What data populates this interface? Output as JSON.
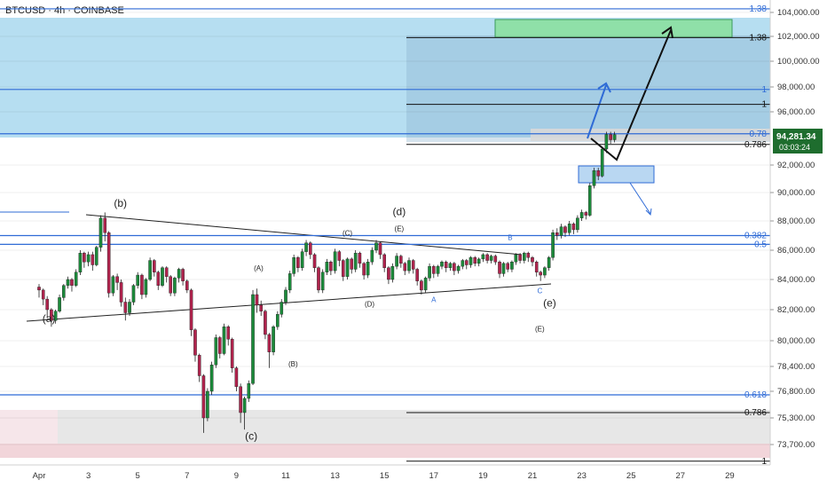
{
  "header": {
    "symbol_line": "BTCUSD · 4h · COINBASE"
  },
  "price_tag": {
    "price": "94,281.34",
    "countdown": "03:03:24"
  },
  "colors": {
    "bull": "#1b8a3a",
    "bear": "#b0234d",
    "fib_blue": "#2f6bd6",
    "target_zone": "#8fe0a8",
    "support_zone": "#e7e7e7",
    "pink_zone": "#f2d5da",
    "upper_bg": "#a9d8ee",
    "price_tag_bg": "#1e6d2e"
  },
  "chart_data": {
    "type": "candlestick",
    "symbol": "BTCUSD",
    "timeframe": "4h",
    "exchange": "COINBASE",
    "ylim": [
      72500,
      105500
    ],
    "y_ticks": [
      {
        "value": 104000,
        "label": "104,000.00"
      },
      {
        "value": 102000,
        "label": "102,000.00"
      },
      {
        "value": 100000,
        "label": "100,000.00"
      },
      {
        "value": 98000,
        "label": "98,000.00"
      },
      {
        "value": 96000,
        "label": "96,000.00"
      },
      {
        "value": 92000,
        "label": "92,000.00"
      },
      {
        "value": 90000,
        "label": "90,000.00"
      },
      {
        "value": 88000,
        "label": "88,000.00"
      },
      {
        "value": 86000,
        "label": "86,000.00"
      },
      {
        "value": 84000,
        "label": "84,000.00"
      },
      {
        "value": 82000,
        "label": "82,000.00"
      },
      {
        "value": 80000,
        "label": "80,000.00"
      },
      {
        "value": 78400,
        "label": "78,400.00"
      },
      {
        "value": 76800,
        "label": "76,800.00"
      },
      {
        "value": 75300,
        "label": "75,300.00"
      },
      {
        "value": 73700,
        "label": "73,700.00"
      }
    ],
    "x_ticks": [
      {
        "day": 1,
        "label": "Apr"
      },
      {
        "day": 3,
        "label": "3"
      },
      {
        "day": 5,
        "label": "5"
      },
      {
        "day": 7,
        "label": "7"
      },
      {
        "day": 9,
        "label": "9"
      },
      {
        "day": 11,
        "label": "11"
      },
      {
        "day": 13,
        "label": "13"
      },
      {
        "day": 15,
        "label": "15"
      },
      {
        "day": 17,
        "label": "17"
      },
      {
        "day": 19,
        "label": "19"
      },
      {
        "day": 21,
        "label": "21"
      },
      {
        "day": 23,
        "label": "23"
      },
      {
        "day": 25,
        "label": "25"
      },
      {
        "day": 27,
        "label": "27"
      },
      {
        "day": 29,
        "label": "29"
      }
    ],
    "last_price": 94281.34,
    "fib_levels": [
      {
        "label": "1.38",
        "value": 104300,
        "color": "#2f6bd6"
      },
      {
        "label": "1.38",
        "value": 101900,
        "color": "#111111"
      },
      {
        "label": "1",
        "value": 97800,
        "color": "#2f6bd6"
      },
      {
        "label": "1",
        "value": 96600,
        "color": "#111111"
      },
      {
        "label": "0.78",
        "value": 94350,
        "color": "#2f6bd6"
      },
      {
        "label": "0.786",
        "value": 93550,
        "color": "#111111"
      },
      {
        "label": "0.382",
        "value": 87000,
        "color": "#2f6bd6"
      },
      {
        "label": "0.5",
        "value": 86400,
        "color": "#2f6bd6"
      },
      {
        "label": "0.618",
        "value": 76600,
        "color": "#2f6bd6"
      },
      {
        "label": "0.786",
        "value": 75600,
        "color": "#111111"
      },
      {
        "label": "1",
        "value": 72700,
        "color": "#111111"
      }
    ],
    "wave_labels": [
      {
        "text": "(a)",
        "day": 1.4,
        "value": 81200
      },
      {
        "text": "(b)",
        "day": 4.3,
        "value": 89000
      },
      {
        "text": "(c)",
        "day": 9.6,
        "value": 74000
      },
      {
        "text": "(d)",
        "day": 15.6,
        "value": 88400
      },
      {
        "text": "(e)",
        "day": 21.7,
        "value": 82200
      },
      {
        "text": "(A)",
        "day": 9.9,
        "value": 84600
      },
      {
        "text": "(B)",
        "day": 11.3,
        "value": 78400
      },
      {
        "text": "(C)",
        "day": 13.5,
        "value": 87000
      },
      {
        "text": "(D)",
        "day": 14.4,
        "value": 82200
      },
      {
        "text": "(E)",
        "day": 15.6,
        "value": 87300
      },
      {
        "text": "A",
        "day": 17.0,
        "value": 82500
      },
      {
        "text": "B",
        "day": 20.1,
        "value": 86700
      },
      {
        "text": "C",
        "day": 21.3,
        "value": 83100
      },
      {
        "text": "(E)",
        "day": 21.3,
        "value": 80600
      }
    ],
    "candles": [
      [
        0.0,
        83500,
        83300,
        82800,
        83700
      ],
      [
        0.17,
        83300,
        82700,
        82300,
        83400
      ],
      [
        0.33,
        82700,
        82000,
        81500,
        82900
      ],
      [
        0.5,
        82000,
        81300,
        80900,
        82100
      ],
      [
        0.67,
        81300,
        81900,
        81100,
        82000
      ],
      [
        0.83,
        81900,
        82800,
        81800,
        83000
      ],
      [
        1.0,
        82800,
        83600,
        82600,
        83700
      ],
      [
        1.17,
        83600,
        84000,
        83400,
        84200
      ],
      [
        1.33,
        84000,
        83600,
        83200,
        84100
      ],
      [
        1.5,
        83600,
        84500,
        83500,
        84700
      ],
      [
        1.67,
        84500,
        85800,
        84300,
        86000
      ],
      [
        1.83,
        85800,
        85200,
        84800,
        85900
      ],
      [
        2.0,
        85200,
        85700,
        84900,
        85900
      ],
      [
        2.17,
        85700,
        85000,
        84600,
        85900
      ],
      [
        2.33,
        85000,
        86200,
        84900,
        86300
      ],
      [
        2.5,
        86200,
        88200,
        85900,
        88400
      ],
      [
        2.67,
        88200,
        87200,
        86600,
        88600
      ],
      [
        2.83,
        87200,
        83100,
        82800,
        87300
      ],
      [
        3.0,
        83100,
        84200,
        82900,
        84300
      ],
      [
        3.17,
        84200,
        83800,
        83300,
        84400
      ],
      [
        3.33,
        83800,
        82500,
        82200,
        84000
      ],
      [
        3.5,
        82500,
        81800,
        81300,
        82800
      ],
      [
        3.67,
        81800,
        82500,
        81600,
        82700
      ],
      [
        3.83,
        82500,
        83600,
        82300,
        83700
      ],
      [
        4.0,
        83600,
        84300,
        83400,
        84500
      ],
      [
        4.17,
        84300,
        83000,
        82700,
        84400
      ],
      [
        4.33,
        83000,
        84000,
        82800,
        84100
      ],
      [
        4.5,
        84000,
        85300,
        83900,
        85500
      ],
      [
        4.67,
        85300,
        84500,
        84200,
        85400
      ],
      [
        4.83,
        84500,
        83600,
        83300,
        84600
      ],
      [
        5.0,
        83600,
        84800,
        83500,
        84900
      ],
      [
        5.17,
        84800,
        84200,
        83800,
        84900
      ],
      [
        5.33,
        84200,
        83100,
        82900,
        84300
      ],
      [
        5.5,
        83100,
        84100,
        82900,
        84200
      ],
      [
        5.67,
        84100,
        84700,
        83800,
        84800
      ],
      [
        5.83,
        84700,
        83900,
        83600,
        84800
      ],
      [
        6.0,
        83900,
        83300,
        83100,
        84000
      ],
      [
        6.17,
        83300,
        80700,
        80300,
        83400
      ],
      [
        6.33,
        80700,
        79100,
        78700,
        80800
      ],
      [
        6.5,
        79100,
        77800,
        77400,
        79200
      ],
      [
        6.67,
        77800,
        75300,
        74400,
        77900
      ],
      [
        6.83,
        75300,
        76800,
        75100,
        77000
      ],
      [
        7.0,
        76800,
        78500,
        76600,
        78700
      ],
      [
        7.17,
        78500,
        80200,
        78300,
        80400
      ],
      [
        7.33,
        80200,
        79200,
        78900,
        80300
      ],
      [
        7.5,
        79200,
        80900,
        79100,
        81100
      ],
      [
        7.67,
        80900,
        80100,
        79700,
        81000
      ],
      [
        7.83,
        80100,
        78300,
        78000,
        80200
      ],
      [
        8.0,
        78300,
        77100,
        76800,
        78400
      ],
      [
        8.17,
        77100,
        75600,
        75000,
        77300
      ],
      [
        8.33,
        75600,
        76400,
        74600,
        76500
      ],
      [
        8.5,
        76400,
        77300,
        76200,
        77500
      ],
      [
        8.67,
        77300,
        83000,
        77200,
        83300
      ],
      [
        8.83,
        83000,
        82300,
        81800,
        83400
      ],
      [
        9.0,
        82300,
        81900,
        81600,
        82600
      ],
      [
        9.17,
        81900,
        80400,
        80100,
        82000
      ],
      [
        9.33,
        80400,
        79300,
        78300,
        80500
      ],
      [
        9.5,
        79300,
        80900,
        79100,
        81000
      ],
      [
        9.67,
        80900,
        81700,
        80700,
        81900
      ],
      [
        9.83,
        81700,
        82500,
        81500,
        82700
      ],
      [
        10.0,
        82500,
        83300,
        82300,
        83500
      ],
      [
        10.17,
        83300,
        84400,
        83100,
        84600
      ],
      [
        10.33,
        84400,
        85500,
        84200,
        85700
      ],
      [
        10.5,
        85500,
        84800,
        84500,
        85600
      ],
      [
        10.67,
        84800,
        85900,
        84600,
        86100
      ],
      [
        10.83,
        85900,
        86500,
        85600,
        86700
      ],
      [
        11.0,
        86500,
        85700,
        85400,
        86600
      ],
      [
        11.17,
        85700,
        84800,
        84500,
        85800
      ],
      [
        11.33,
        84800,
        83300,
        83100,
        84900
      ],
      [
        11.5,
        83300,
        84500,
        83100,
        84700
      ],
      [
        11.67,
        84500,
        85200,
        84300,
        85400
      ],
      [
        11.83,
        85200,
        84600,
        84300,
        85300
      ],
      [
        12.0,
        84600,
        85900,
        84400,
        86100
      ],
      [
        12.17,
        85900,
        85300,
        84900,
        86000
      ],
      [
        12.33,
        85300,
        84200,
        83900,
        85400
      ],
      [
        12.5,
        84200,
        85400,
        84000,
        85500
      ],
      [
        12.67,
        85400,
        84700,
        84400,
        85500
      ],
      [
        12.83,
        84700,
        85800,
        84500,
        86000
      ],
      [
        13.0,
        85800,
        85100,
        84800,
        85900
      ],
      [
        13.17,
        85100,
        84300,
        84000,
        85200
      ],
      [
        13.33,
        84300,
        85200,
        84100,
        85400
      ],
      [
        13.5,
        85200,
        86000,
        85000,
        86200
      ],
      [
        13.67,
        86000,
        86500,
        85800,
        86700
      ],
      [
        13.83,
        86500,
        85700,
        85400,
        86600
      ],
      [
        14.0,
        85700,
        84800,
        84500,
        85800
      ],
      [
        14.17,
        84800,
        84000,
        83700,
        84900
      ],
      [
        14.33,
        84000,
        84900,
        83800,
        85100
      ],
      [
        14.5,
        84900,
        85600,
        84700,
        85800
      ],
      [
        14.67,
        85600,
        85100,
        84800,
        85700
      ],
      [
        14.83,
        85100,
        84600,
        84300,
        85200
      ],
      [
        15.0,
        84600,
        85300,
        84400,
        85500
      ],
      [
        15.17,
        85300,
        84700,
        84400,
        85400
      ],
      [
        15.33,
        84700,
        83900,
        83600,
        84800
      ],
      [
        15.5,
        83900,
        83300,
        83000,
        84000
      ],
      [
        15.67,
        83300,
        84100,
        83100,
        84200
      ],
      [
        15.83,
        84100,
        84900,
        83900,
        85100
      ],
      [
        16.0,
        84900,
        84400,
        84100,
        85000
      ],
      [
        16.17,
        84400,
        84900,
        84200,
        85000
      ],
      [
        16.33,
        84900,
        85200,
        84700,
        85300
      ],
      [
        16.5,
        85200,
        84800,
        84500,
        85300
      ],
      [
        16.67,
        84800,
        85100,
        84600,
        85200
      ],
      [
        16.83,
        85100,
        84600,
        84300,
        85200
      ],
      [
        17.0,
        84600,
        84900,
        84400,
        85000
      ],
      [
        17.17,
        84900,
        85300,
        84700,
        85400
      ],
      [
        17.33,
        85300,
        85000,
        84700,
        85400
      ],
      [
        17.5,
        85000,
        85500,
        84800,
        85600
      ],
      [
        17.67,
        85500,
        85100,
        84900,
        85600
      ],
      [
        17.83,
        85100,
        85400,
        84900,
        85500
      ],
      [
        18.0,
        85400,
        85700,
        85200,
        85800
      ],
      [
        18.17,
        85700,
        85300,
        85100,
        85800
      ],
      [
        18.33,
        85300,
        85600,
        85100,
        85700
      ],
      [
        18.5,
        85600,
        85200,
        85000,
        85700
      ],
      [
        18.67,
        85200,
        84400,
        84100,
        85300
      ],
      [
        18.83,
        84400,
        85100,
        84200,
        85200
      ],
      [
        19.0,
        85100,
        84700,
        84500,
        85200
      ],
      [
        19.17,
        84700,
        85200,
        84500,
        85300
      ],
      [
        19.33,
        85200,
        85700,
        85000,
        85800
      ],
      [
        19.5,
        85700,
        85300,
        85100,
        85800
      ],
      [
        19.67,
        85300,
        85800,
        85100,
        85900
      ],
      [
        19.83,
        85800,
        85500,
        85200,
        85900
      ],
      [
        20.0,
        85500,
        85200,
        84900,
        85600
      ],
      [
        20.17,
        85200,
        84500,
        84200,
        85300
      ],
      [
        20.33,
        84500,
        84300,
        83900,
        84600
      ],
      [
        20.5,
        84300,
        84800,
        84100,
        84900
      ],
      [
        20.67,
        84800,
        85500,
        84600,
        85600
      ],
      [
        20.83,
        85500,
        87200,
        85300,
        87400
      ],
      [
        21.0,
        87200,
        87000,
        86700,
        87500
      ],
      [
        21.17,
        87000,
        87600,
        86800,
        87800
      ],
      [
        21.33,
        87600,
        87200,
        86900,
        87700
      ],
      [
        21.5,
        87200,
        87800,
        87000,
        88000
      ],
      [
        21.67,
        87800,
        87400,
        87100,
        87900
      ],
      [
        21.83,
        87400,
        88200,
        87200,
        88400
      ],
      [
        22.0,
        88200,
        88600,
        88000,
        88800
      ],
      [
        22.17,
        88600,
        88400,
        88100,
        88700
      ],
      [
        22.33,
        88400,
        90500,
        88300,
        90700
      ],
      [
        22.5,
        90500,
        91600,
        90300,
        91800
      ],
      [
        22.67,
        91600,
        91200,
        90900,
        91800
      ],
      [
        22.83,
        91200,
        93200,
        91100,
        93400
      ],
      [
        23.0,
        93200,
        94300,
        92900,
        94500
      ],
      [
        23.17,
        94300,
        93900,
        93600,
        94500
      ],
      [
        23.33,
        93900,
        94281,
        93700,
        94500
      ]
    ]
  }
}
